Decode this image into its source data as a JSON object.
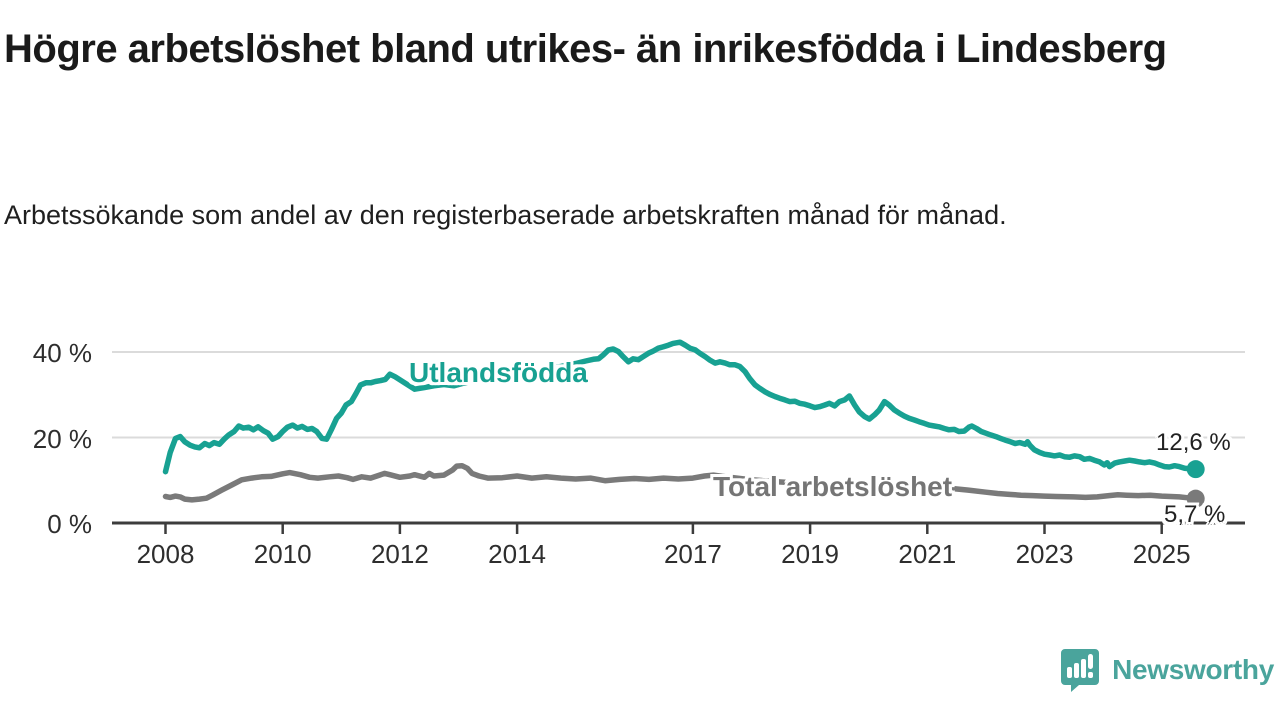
{
  "title": "Högre arbetslöshet bland utrikes- än inrikesfödda i Lindesberg",
  "subtitle": "Arbetssökande som andel av den registerbaserade arbetskraften månad för månad.",
  "branding": {
    "logo_text": "Newsworthy",
    "logo_color": "#4aa49c",
    "logo_icon": "bar-chart-speech-bubble"
  },
  "chart_data": {
    "type": "line",
    "title": "Högre arbetslöshet bland utrikes- än inrikesfödda i Lindesberg",
    "subtitle": "Arbetssökande som andel av den registerbaserade arbetskraften månad för månad.",
    "xlabel": "",
    "ylabel": "",
    "grid": true,
    "legend_position": "inline-labels",
    "x_axis": {
      "range": [
        2007.1,
        2026.4
      ],
      "ticks": [
        2008,
        2010,
        2012,
        2014,
        2017,
        2019,
        2021,
        2023,
        2025
      ],
      "tick_labels": [
        "2008",
        "2010",
        "2012",
        "2014",
        "2017",
        "2019",
        "2021",
        "2023",
        "2025"
      ]
    },
    "y_axis": {
      "range": [
        0,
        44
      ],
      "ticks": [
        0,
        20,
        40
      ],
      "tick_labels": [
        "0 %",
        "20 %",
        "40 %"
      ]
    },
    "gridline_color": "#dbdbdb",
    "axis_color": "#3c3c3c",
    "series": [
      {
        "name": "Utlandsfödda",
        "color": "#18a192",
        "end_value": 12.6,
        "end_label": "12,6 %",
        "points": [
          [
            2008.0,
            12.0
          ],
          [
            2008.08,
            16.5
          ],
          [
            2008.17,
            19.8
          ],
          [
            2008.25,
            20.2
          ],
          [
            2008.33,
            19.0
          ],
          [
            2008.42,
            18.2
          ],
          [
            2008.5,
            17.8
          ],
          [
            2008.58,
            17.6
          ],
          [
            2008.67,
            18.6
          ],
          [
            2008.75,
            18.1
          ],
          [
            2008.83,
            18.8
          ],
          [
            2008.92,
            18.4
          ],
          [
            2009.0,
            19.6
          ],
          [
            2009.08,
            20.6
          ],
          [
            2009.17,
            21.4
          ],
          [
            2009.25,
            22.7
          ],
          [
            2009.33,
            22.2
          ],
          [
            2009.42,
            22.4
          ],
          [
            2009.5,
            21.8
          ],
          [
            2009.58,
            22.5
          ],
          [
            2009.67,
            21.6
          ],
          [
            2009.75,
            21.0
          ],
          [
            2009.83,
            19.6
          ],
          [
            2009.92,
            20.2
          ],
          [
            2010.0,
            21.4
          ],
          [
            2010.08,
            22.4
          ],
          [
            2010.17,
            22.9
          ],
          [
            2010.25,
            22.2
          ],
          [
            2010.33,
            22.6
          ],
          [
            2010.42,
            21.9
          ],
          [
            2010.5,
            22.1
          ],
          [
            2010.58,
            21.4
          ],
          [
            2010.67,
            19.8
          ],
          [
            2010.75,
            19.6
          ],
          [
            2010.83,
            21.8
          ],
          [
            2010.92,
            24.5
          ],
          [
            2011.0,
            25.7
          ],
          [
            2011.08,
            27.6
          ],
          [
            2011.17,
            28.4
          ],
          [
            2011.25,
            30.3
          ],
          [
            2011.33,
            32.3
          ],
          [
            2011.42,
            32.8
          ],
          [
            2011.5,
            32.8
          ],
          [
            2011.58,
            33.1
          ],
          [
            2011.67,
            33.3
          ],
          [
            2011.75,
            33.6
          ],
          [
            2011.83,
            34.8
          ],
          [
            2011.92,
            34.2
          ],
          [
            2012.0,
            33.5
          ],
          [
            2012.08,
            32.8
          ],
          [
            2012.17,
            32.0
          ],
          [
            2012.25,
            31.3
          ],
          [
            2012.42,
            31.7
          ],
          [
            2012.58,
            32.1
          ],
          [
            2012.75,
            32.4
          ],
          [
            2012.92,
            32.1
          ],
          [
            2013.08,
            32.7
          ],
          [
            2013.25,
            33.2
          ],
          [
            2013.5,
            33.6
          ],
          [
            2013.75,
            34.0
          ],
          [
            2014.0,
            34.6
          ],
          [
            2014.25,
            35.2
          ],
          [
            2014.5,
            36.0
          ],
          [
            2014.75,
            36.6
          ],
          [
            2015.0,
            37.3
          ],
          [
            2015.17,
            37.9
          ],
          [
            2015.3,
            38.3
          ],
          [
            2015.39,
            38.4
          ],
          [
            2015.47,
            39.3
          ],
          [
            2015.56,
            40.5
          ],
          [
            2015.64,
            40.7
          ],
          [
            2015.73,
            40.1
          ],
          [
            2015.81,
            38.9
          ],
          [
            2015.9,
            37.7
          ],
          [
            2015.98,
            38.4
          ],
          [
            2016.07,
            38.2
          ],
          [
            2016.15,
            38.9
          ],
          [
            2016.24,
            39.7
          ],
          [
            2016.32,
            40.2
          ],
          [
            2016.41,
            40.9
          ],
          [
            2016.49,
            41.2
          ],
          [
            2016.58,
            41.6
          ],
          [
            2016.66,
            42.0
          ],
          [
            2016.78,
            42.3
          ],
          [
            2016.87,
            41.6
          ],
          [
            2016.95,
            40.9
          ],
          [
            2017.04,
            40.5
          ],
          [
            2017.12,
            39.7
          ],
          [
            2017.21,
            38.9
          ],
          [
            2017.29,
            38.1
          ],
          [
            2017.38,
            37.4
          ],
          [
            2017.46,
            37.7
          ],
          [
            2017.55,
            37.4
          ],
          [
            2017.63,
            37.0
          ],
          [
            2017.72,
            37.0
          ],
          [
            2017.8,
            36.6
          ],
          [
            2017.89,
            35.4
          ],
          [
            2017.97,
            33.8
          ],
          [
            2018.06,
            32.3
          ],
          [
            2018.14,
            31.5
          ],
          [
            2018.23,
            30.7
          ],
          [
            2018.31,
            30.1
          ],
          [
            2018.4,
            29.6
          ],
          [
            2018.48,
            29.2
          ],
          [
            2018.57,
            28.8
          ],
          [
            2018.65,
            28.4
          ],
          [
            2018.74,
            28.5
          ],
          [
            2018.82,
            28.0
          ],
          [
            2018.91,
            27.8
          ],
          [
            2019.0,
            27.4
          ],
          [
            2019.08,
            27.0
          ],
          [
            2019.16,
            27.2
          ],
          [
            2019.25,
            27.6
          ],
          [
            2019.33,
            28.0
          ],
          [
            2019.42,
            27.4
          ],
          [
            2019.5,
            28.4
          ],
          [
            2019.59,
            28.8
          ],
          [
            2019.67,
            29.7
          ],
          [
            2019.76,
            27.6
          ],
          [
            2019.84,
            26.0
          ],
          [
            2019.93,
            24.9
          ],
          [
            2020.01,
            24.3
          ],
          [
            2020.1,
            25.3
          ],
          [
            2020.18,
            26.4
          ],
          [
            2020.27,
            28.4
          ],
          [
            2020.35,
            27.6
          ],
          [
            2020.44,
            26.4
          ],
          [
            2020.52,
            25.7
          ],
          [
            2020.61,
            25.0
          ],
          [
            2020.69,
            24.5
          ],
          [
            2020.78,
            24.1
          ],
          [
            2020.86,
            23.7
          ],
          [
            2020.95,
            23.3
          ],
          [
            2021.03,
            22.9
          ],
          [
            2021.12,
            22.7
          ],
          [
            2021.2,
            22.5
          ],
          [
            2021.29,
            22.1
          ],
          [
            2021.37,
            21.8
          ],
          [
            2021.46,
            21.9
          ],
          [
            2021.54,
            21.4
          ],
          [
            2021.63,
            21.5
          ],
          [
            2021.71,
            22.4
          ],
          [
            2021.76,
            22.7
          ],
          [
            2021.84,
            22.1
          ],
          [
            2021.92,
            21.4
          ],
          [
            2022.0,
            21.0
          ],
          [
            2022.08,
            20.6
          ],
          [
            2022.17,
            20.2
          ],
          [
            2022.25,
            19.8
          ],
          [
            2022.33,
            19.4
          ],
          [
            2022.42,
            19.0
          ],
          [
            2022.5,
            18.6
          ],
          [
            2022.58,
            18.8
          ],
          [
            2022.67,
            18.4
          ],
          [
            2022.71,
            19.0
          ],
          [
            2022.75,
            18.2
          ],
          [
            2022.83,
            17.1
          ],
          [
            2022.92,
            16.5
          ],
          [
            2023.0,
            16.1
          ],
          [
            2023.09,
            15.9
          ],
          [
            2023.17,
            15.7
          ],
          [
            2023.26,
            15.9
          ],
          [
            2023.34,
            15.5
          ],
          [
            2023.43,
            15.4
          ],
          [
            2023.51,
            15.7
          ],
          [
            2023.6,
            15.5
          ],
          [
            2023.68,
            14.9
          ],
          [
            2023.77,
            15.1
          ],
          [
            2023.85,
            14.7
          ],
          [
            2023.94,
            14.3
          ],
          [
            2024.02,
            13.6
          ],
          [
            2024.07,
            14.1
          ],
          [
            2024.11,
            13.2
          ],
          [
            2024.2,
            14.0
          ],
          [
            2024.28,
            14.3
          ],
          [
            2024.37,
            14.5
          ],
          [
            2024.45,
            14.7
          ],
          [
            2024.54,
            14.5
          ],
          [
            2024.62,
            14.3
          ],
          [
            2024.71,
            14.1
          ],
          [
            2024.79,
            14.3
          ],
          [
            2024.88,
            14.0
          ],
          [
            2024.96,
            13.6
          ],
          [
            2025.05,
            13.2
          ],
          [
            2025.13,
            13.1
          ],
          [
            2025.22,
            13.4
          ],
          [
            2025.3,
            13.2
          ],
          [
            2025.39,
            12.8
          ],
          [
            2025.47,
            12.7
          ],
          [
            2025.58,
            12.6
          ]
        ]
      },
      {
        "name": "Total arbetslöshet",
        "color": "#7a7a7a",
        "end_value": 5.7,
        "end_label": "5,7 %",
        "points": [
          [
            2008.0,
            6.2
          ],
          [
            2008.08,
            6.0
          ],
          [
            2008.17,
            6.3
          ],
          [
            2008.25,
            6.1
          ],
          [
            2008.33,
            5.6
          ],
          [
            2008.45,
            5.4
          ],
          [
            2008.58,
            5.6
          ],
          [
            2008.7,
            5.8
          ],
          [
            2008.8,
            6.5
          ],
          [
            2008.96,
            7.7
          ],
          [
            2009.13,
            8.9
          ],
          [
            2009.3,
            10.1
          ],
          [
            2009.47,
            10.5
          ],
          [
            2009.64,
            10.8
          ],
          [
            2009.8,
            10.9
          ],
          [
            2010.0,
            11.5
          ],
          [
            2010.12,
            11.8
          ],
          [
            2010.3,
            11.3
          ],
          [
            2010.46,
            10.7
          ],
          [
            2010.6,
            10.5
          ],
          [
            2010.8,
            10.8
          ],
          [
            2010.95,
            11.0
          ],
          [
            2011.1,
            10.6
          ],
          [
            2011.2,
            10.2
          ],
          [
            2011.35,
            10.8
          ],
          [
            2011.5,
            10.5
          ],
          [
            2011.74,
            11.6
          ],
          [
            2011.83,
            11.3
          ],
          [
            2012.0,
            10.7
          ],
          [
            2012.17,
            11.0
          ],
          [
            2012.25,
            11.3
          ],
          [
            2012.42,
            10.7
          ],
          [
            2012.5,
            11.6
          ],
          [
            2012.58,
            11.0
          ],
          [
            2012.75,
            11.2
          ],
          [
            2012.9,
            12.4
          ],
          [
            2012.97,
            13.3
          ],
          [
            2013.06,
            13.4
          ],
          [
            2013.15,
            12.8
          ],
          [
            2013.23,
            11.6
          ],
          [
            2013.35,
            11.0
          ],
          [
            2013.5,
            10.5
          ],
          [
            2013.75,
            10.6
          ],
          [
            2014.0,
            11.0
          ],
          [
            2014.25,
            10.5
          ],
          [
            2014.5,
            10.8
          ],
          [
            2014.75,
            10.5
          ],
          [
            2015.0,
            10.3
          ],
          [
            2015.25,
            10.5
          ],
          [
            2015.5,
            9.9
          ],
          [
            2015.75,
            10.2
          ],
          [
            2016.0,
            10.4
          ],
          [
            2016.25,
            10.2
          ],
          [
            2016.5,
            10.5
          ],
          [
            2016.75,
            10.3
          ],
          [
            2017.0,
            10.5
          ],
          [
            2017.2,
            11.0
          ],
          [
            2017.35,
            11.2
          ],
          [
            2017.5,
            10.9
          ],
          [
            2017.75,
            10.5
          ],
          [
            2018.0,
            10.1
          ],
          [
            2018.5,
            9.6
          ],
          [
            2019.0,
            9.2
          ],
          [
            2019.5,
            8.9
          ],
          [
            2019.8,
            8.7
          ],
          [
            2020.1,
            8.9
          ],
          [
            2020.35,
            9.4
          ],
          [
            2020.6,
            9.1
          ],
          [
            2021.0,
            8.6
          ],
          [
            2021.4,
            8.1
          ],
          [
            2021.7,
            7.7
          ],
          [
            2022.0,
            7.2
          ],
          [
            2022.2,
            6.9
          ],
          [
            2022.4,
            6.7
          ],
          [
            2022.6,
            6.5
          ],
          [
            2022.8,
            6.4
          ],
          [
            2023.0,
            6.3
          ],
          [
            2023.2,
            6.2
          ],
          [
            2023.5,
            6.1
          ],
          [
            2023.7,
            6.0
          ],
          [
            2023.9,
            6.1
          ],
          [
            2024.1,
            6.4
          ],
          [
            2024.25,
            6.6
          ],
          [
            2024.4,
            6.5
          ],
          [
            2024.6,
            6.4
          ],
          [
            2024.8,
            6.5
          ],
          [
            2025.0,
            6.3
          ],
          [
            2025.15,
            6.2
          ],
          [
            2025.3,
            6.1
          ],
          [
            2025.45,
            5.9
          ],
          [
            2025.58,
            5.7
          ]
        ]
      }
    ]
  }
}
